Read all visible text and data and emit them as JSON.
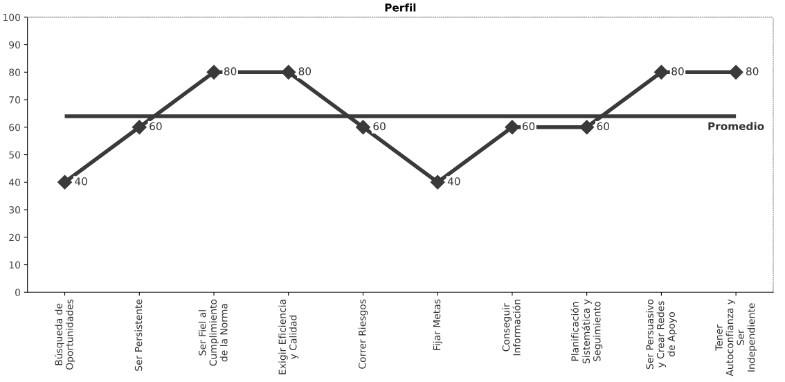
{
  "chart_data": {
    "type": "line",
    "title": "Perfil",
    "categories": [
      "Búsqueda de\nOportunidades",
      "Ser Persistente",
      "Ser Fiel al\nCumplimiento\nde la Norma",
      "Exigir Eficiencia\ny Calidad",
      "Correr Riesgos",
      "Fijar Metas",
      "Conseguir\nInformación",
      "Planificación\nSistemática y\nSeguimiento",
      "Ser Persuasivo\ny Crear Redes\nde Apoyo",
      "Tener\nAutoconfianza y\nSer\nIndependiente"
    ],
    "series": [
      {
        "color": "#3a3a3a",
        "values": [
          40,
          60,
          80,
          80,
          60,
          40,
          60,
          60,
          80,
          80
        ]
      }
    ],
    "ref_lines": [
      {
        "axis": "y",
        "value": 64,
        "label": "Promedio",
        "color": "#3a3a3a"
      }
    ],
    "ylim": [
      0,
      100
    ],
    "yticks": [
      0,
      10,
      20,
      30,
      40,
      50,
      60,
      70,
      80,
      90,
      100
    ],
    "marker": "diamond",
    "data_labels": true,
    "grid": false,
    "legend": false
  }
}
